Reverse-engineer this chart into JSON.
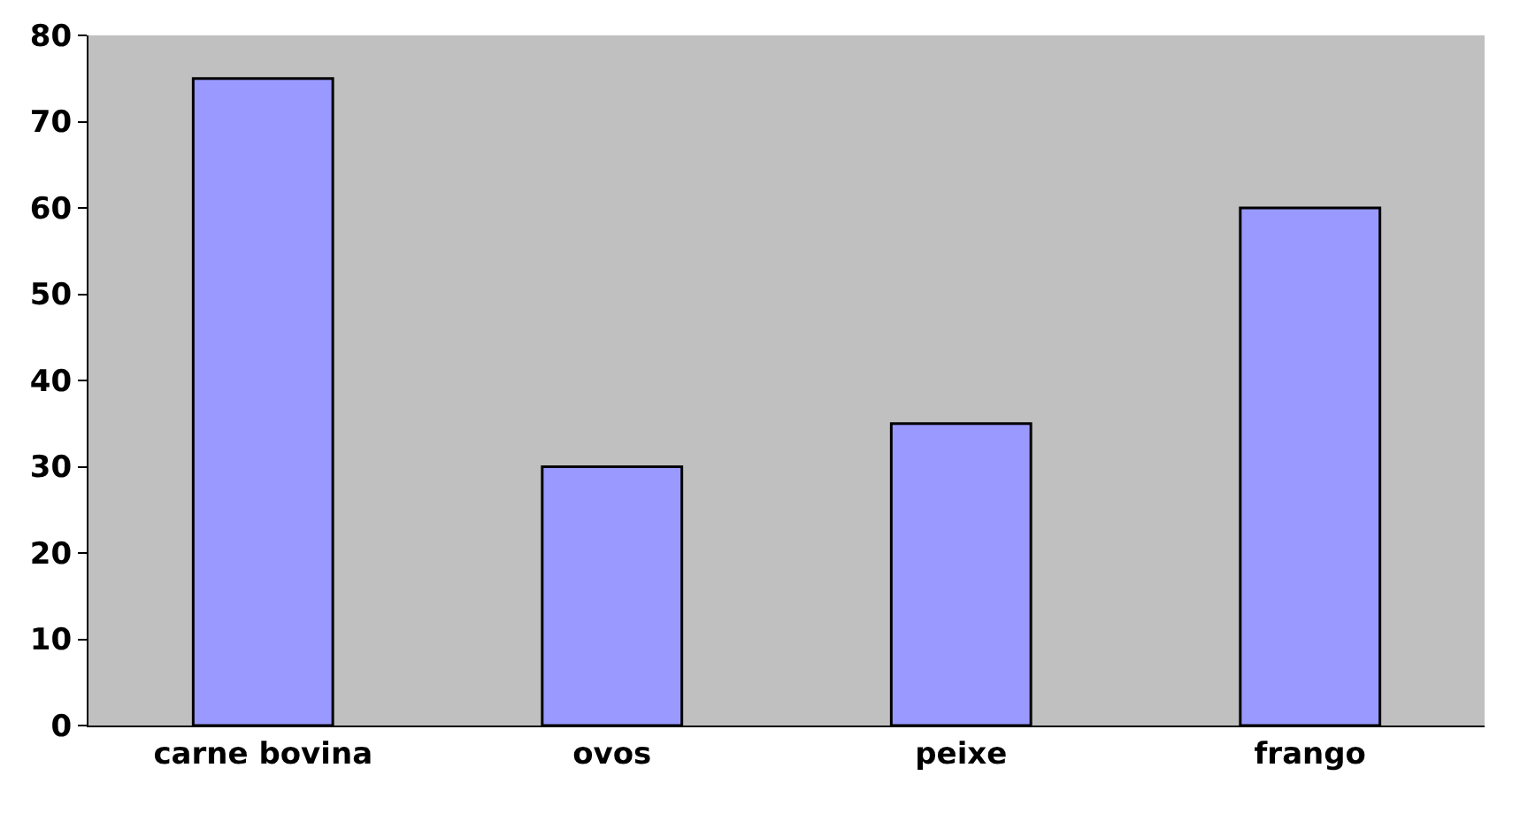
{
  "chart_data": {
    "type": "bar",
    "categories": [
      "carne bovina",
      "ovos",
      "peixe",
      "frango"
    ],
    "values": [
      75,
      30,
      35,
      60
    ],
    "color": "#9999ff",
    "ylim": [
      0,
      80
    ],
    "yticks": [
      0,
      10,
      20,
      30,
      40,
      50,
      60,
      70,
      80
    ],
    "grid": false
  }
}
